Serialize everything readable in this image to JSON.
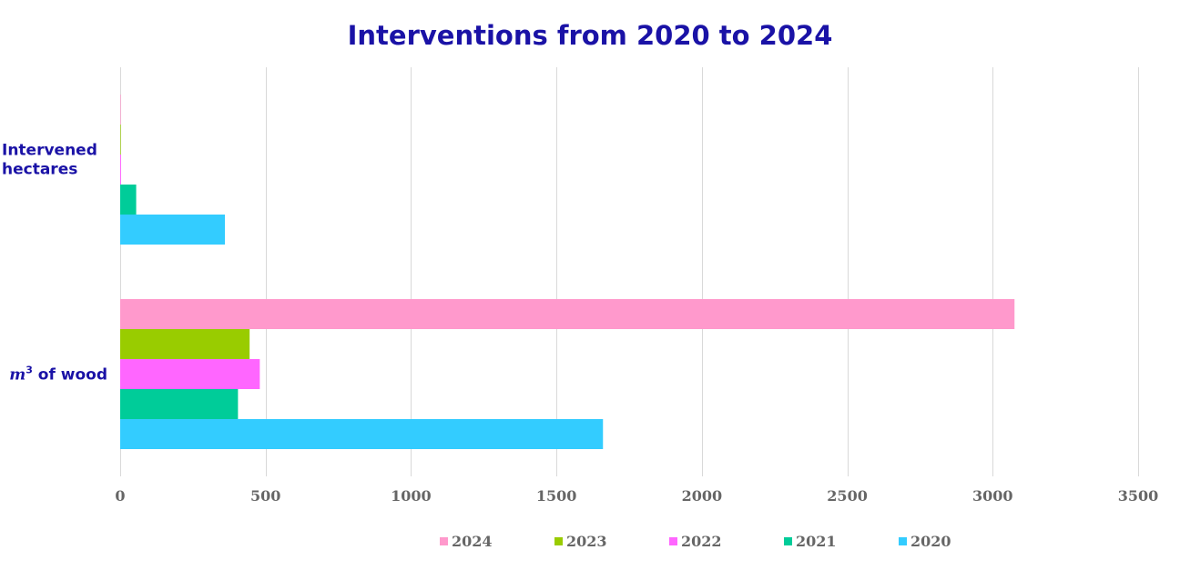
{
  "chart_data": {
    "type": "bar",
    "orientation": "horizontal",
    "title": "Interventions from 2020 to 2024",
    "xlabel": "",
    "ylabel": "",
    "xlim": [
      0,
      3500
    ],
    "x_ticks": [
      "0",
      "500",
      "1000",
      "1500",
      "2000",
      "2500",
      "3000",
      "3500"
    ],
    "grid": "vertical",
    "legend_position": "bottom",
    "categories": [
      {
        "label_lines": [
          "Intervened",
          "hectares"
        ]
      },
      {
        "label_lines": [
          "m",
          "3",
          " of wood"
        ]
      }
    ],
    "series": [
      {
        "name": "2024",
        "color": "#ff99cc",
        "values": [
          2,
          3075
        ]
      },
      {
        "name": "2023",
        "color": "#99cc00",
        "values": [
          2,
          445
        ]
      },
      {
        "name": "2022",
        "color": "#ff66ff",
        "values": [
          3,
          480
        ]
      },
      {
        "name": "2021",
        "color": "#00cc99",
        "values": [
          55,
          405
        ]
      },
      {
        "name": "2020",
        "color": "#33ccff",
        "values": [
          360,
          1660
        ]
      }
    ]
  }
}
